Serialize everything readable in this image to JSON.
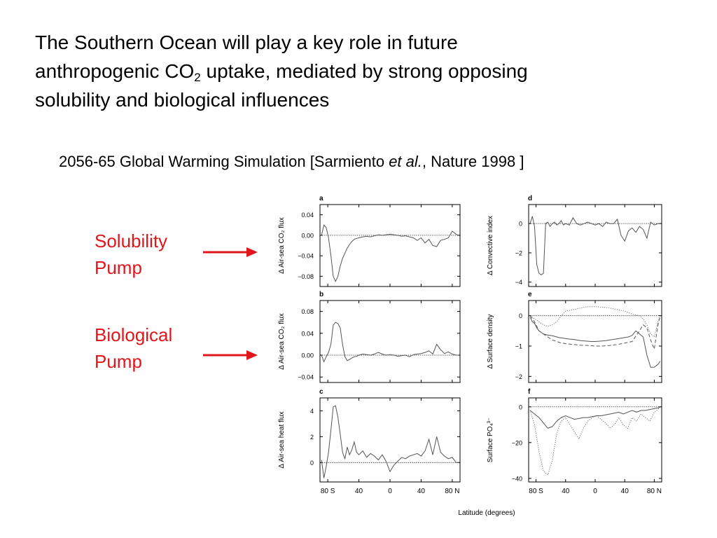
{
  "slide": {
    "title_line1": "The Southern Ocean will play a key role in future",
    "title_line2_pre": "anthropogenic CO",
    "title_line2_sub": "2",
    "title_line2_post": " uptake, mediated by strong opposing",
    "title_line3": "solubility and biological influences",
    "sub_pre": "2056-65 Global Warming Simulation [Sarmiento ",
    "sub_italic": "et al.",
    "sub_post": ", Nature 1998 ]",
    "pump1_line1": "Solubility",
    "pump1_line2": "Pump",
    "pump2_line1": "Biological",
    "pump2_line2": "Pump",
    "accent_color": "#e0161b"
  },
  "chart_data": {
    "type": "line",
    "x_label": "Latitude (degrees)",
    "x_ticks": [
      "80 S",
      "40",
      "0",
      "40",
      "80 N"
    ],
    "x_range": [
      -90,
      90
    ],
    "panels": [
      {
        "id": "a",
        "ylabel": "Δ Air-sea CO₂ flux",
        "ylim": [
          -0.1,
          0.06
        ],
        "yticks": [
          0.04,
          0.0,
          -0.04,
          -0.08
        ],
        "ytick_labels": [
          "0.04",
          "0.00",
          "−0.04",
          "−0.08"
        ],
        "zero_line": 0,
        "series": [
          {
            "style": "solid",
            "x": [
              -88,
              -85,
              -82,
              -79,
              -76,
              -73,
              -70,
              -67,
              -64,
              -61,
              -58,
              -55,
              -52,
              -49,
              -46,
              -43,
              -40,
              -35,
              -30,
              -25,
              -20,
              -15,
              -10,
              -5,
              0,
              5,
              10,
              15,
              20,
              25,
              30,
              35,
              40,
              45,
              50,
              55,
              60,
              65,
              70,
              75,
              80,
              85,
              88
            ],
            "y": [
              0.0,
              0.02,
              0.015,
              -0.005,
              -0.04,
              -0.08,
              -0.09,
              -0.08,
              -0.06,
              -0.045,
              -0.035,
              -0.025,
              -0.018,
              -0.012,
              -0.008,
              -0.006,
              -0.005,
              -0.003,
              -0.002,
              -0.003,
              -0.001,
              0.001,
              0.0,
              0.001,
              0.002,
              0.001,
              0.0,
              -0.002,
              -0.001,
              -0.003,
              -0.005,
              -0.01,
              -0.005,
              -0.015,
              -0.008,
              -0.02,
              -0.022,
              -0.01,
              -0.008,
              -0.005,
              0.008,
              0.002,
              0.0
            ]
          }
        ]
      },
      {
        "id": "b",
        "ylabel": "Δ Air-sea CO₂ flux",
        "ylim": [
          -0.05,
          0.1
        ],
        "yticks": [
          0.08,
          0.04,
          0.0,
          -0.04
        ],
        "ytick_labels": [
          "0.08",
          "0.04",
          "0.00",
          "−0.04"
        ],
        "zero_line": 0,
        "series": [
          {
            "style": "solid",
            "x": [
              -88,
              -85,
              -82,
              -79,
              -76,
              -73,
              -70,
              -67,
              -64,
              -61,
              -58,
              -55,
              -52,
              -49,
              -46,
              -43,
              -40,
              -35,
              -30,
              -25,
              -20,
              -15,
              -10,
              -5,
              0,
              5,
              10,
              15,
              20,
              25,
              30,
              35,
              40,
              45,
              50,
              55,
              60,
              65,
              70,
              75,
              80,
              85,
              88
            ],
            "y": [
              0.0,
              -0.012,
              -0.003,
              0.005,
              0.02,
              0.055,
              0.06,
              0.058,
              0.05,
              0.02,
              -0.003,
              -0.01,
              -0.008,
              -0.005,
              -0.003,
              -0.002,
              0.0,
              0.002,
              0.001,
              0.0,
              0.002,
              0.005,
              0.002,
              0.0,
              0.001,
              0.0,
              -0.002,
              -0.001,
              0.0,
              -0.003,
              0.001,
              0.002,
              0.003,
              0.005,
              0.008,
              0.002,
              0.02,
              0.01,
              0.003,
              0.006,
              0.002,
              0.0,
              0.0
            ]
          }
        ]
      },
      {
        "id": "c",
        "ylabel": "Δ Air-sea heat flux",
        "ylim": [
          -1.5,
          5
        ],
        "yticks": [
          4,
          2,
          0
        ],
        "ytick_labels": [
          "4",
          "2",
          "0"
        ],
        "zero_line": 0,
        "series": [
          {
            "style": "solid",
            "x": [
              -88,
              -85,
              -82,
              -79,
              -76,
              -73,
              -70,
              -67,
              -64,
              -61,
              -58,
              -55,
              -52,
              -49,
              -46,
              -43,
              -40,
              -35,
              -30,
              -25,
              -20,
              -15,
              -10,
              -5,
              0,
              5,
              10,
              15,
              20,
              25,
              30,
              35,
              40,
              45,
              50,
              55,
              60,
              65,
              70,
              75,
              80,
              85,
              88
            ],
            "y": [
              0.2,
              -1.2,
              -0.3,
              0.8,
              2.5,
              4.3,
              4.4,
              3.5,
              2.2,
              0.8,
              0.3,
              1.2,
              0.6,
              1.0,
              1.6,
              0.8,
              0.6,
              0.9,
              0.4,
              0.7,
              0.5,
              0.2,
              0.6,
              0.1,
              -0.7,
              -0.2,
              0.1,
              0.4,
              0.3,
              0.5,
              0.6,
              0.7,
              0.5,
              0.9,
              1.8,
              0.6,
              2.0,
              0.8,
              0.5,
              0.3,
              0.4,
              0.0,
              0.0
            ]
          }
        ]
      },
      {
        "id": "d",
        "ylabel": "Δ Convective index",
        "ylim": [
          -4.3,
          1.3
        ],
        "yticks": [
          0,
          -2,
          -4
        ],
        "ytick_labels": [
          "0",
          "−2",
          "−4"
        ],
        "zero_line": 0,
        "series": [
          {
            "style": "solid",
            "x": [
              -88,
              -85,
              -82,
              -79,
              -76,
              -73,
              -70,
              -67,
              -64,
              -61,
              -58,
              -55,
              -52,
              -49,
              -46,
              -43,
              -40,
              -35,
              -30,
              -25,
              -20,
              -15,
              -10,
              -5,
              0,
              5,
              10,
              15,
              20,
              25,
              30,
              35,
              40,
              45,
              50,
              55,
              60,
              65,
              70,
              75,
              80,
              85,
              88
            ],
            "y": [
              0.0,
              0.5,
              -0.2,
              -2.8,
              -3.4,
              -3.5,
              -3.4,
              0.0,
              0.1,
              -0.2,
              0.0,
              0.1,
              -0.1,
              0.0,
              0.2,
              -0.1,
              0.0,
              -0.1,
              0.4,
              0.0,
              -0.1,
              0.0,
              0.1,
              0.0,
              -0.1,
              0.0,
              -0.2,
              0.1,
              0.0,
              0.0,
              0.3,
              -0.8,
              -1.2,
              -0.5,
              -0.3,
              -0.6,
              -0.2,
              -0.4,
              -1.0,
              0.1,
              -0.1,
              0.0,
              0.0
            ]
          }
        ]
      },
      {
        "id": "e",
        "ylabel": "Δ Surface density",
        "ylim": [
          -2.2,
          0.5
        ],
        "yticks": [
          0,
          -1,
          -2
        ],
        "ytick_labels": [
          "0",
          "−1",
          "−2"
        ],
        "zero_line": 0,
        "series": [
          {
            "style": "solid",
            "x": [
              -88,
              -85,
              -82,
              -79,
              -76,
              -73,
              -70,
              -67,
              -64,
              -61,
              -58,
              -55,
              -52,
              -49,
              -46,
              -43,
              -40,
              -35,
              -30,
              -25,
              -20,
              -15,
              -10,
              -5,
              0,
              5,
              10,
              15,
              20,
              25,
              30,
              35,
              40,
              45,
              50,
              55,
              60,
              65,
              70,
              75,
              80,
              85,
              88
            ],
            "y": [
              -0.05,
              -0.2,
              -0.25,
              -0.4,
              -0.5,
              -0.55,
              -0.6,
              -0.62,
              -0.64,
              -0.65,
              -0.66,
              -0.68,
              -0.7,
              -0.72,
              -0.73,
              -0.74,
              -0.75,
              -0.77,
              -0.78,
              -0.8,
              -0.82,
              -0.83,
              -0.84,
              -0.85,
              -0.85,
              -0.84,
              -0.83,
              -0.82,
              -0.8,
              -0.78,
              -0.76,
              -0.74,
              -0.72,
              -0.7,
              -0.65,
              -0.5,
              -0.6,
              -0.7,
              -1.3,
              -1.7,
              -1.7,
              -1.6,
              -1.5
            ]
          },
          {
            "style": "dashed",
            "x": [
              -88,
              -82,
              -76,
              -70,
              -64,
              -58,
              -52,
              -46,
              -40,
              -30,
              -20,
              -10,
              0,
              10,
              20,
              30,
              40,
              50,
              60,
              65,
              70,
              75,
              80,
              85,
              88
            ],
            "y": [
              0.0,
              -0.2,
              -0.5,
              -0.6,
              -0.7,
              -0.8,
              -0.85,
              -0.9,
              -0.92,
              -0.95,
              -0.97,
              -0.98,
              -1.0,
              -1.0,
              -0.98,
              -0.95,
              -0.9,
              -0.85,
              -0.5,
              -0.3,
              -0.4,
              -0.8,
              -1.1,
              -0.3,
              0.0
            ]
          },
          {
            "style": "dotted",
            "x": [
              -88,
              -82,
              -76,
              -70,
              -64,
              -58,
              -52,
              -46,
              -40,
              -30,
              -20,
              -10,
              0,
              10,
              20,
              30,
              40,
              50,
              60,
              65,
              70,
              75,
              80,
              85,
              88
            ],
            "y": [
              0.0,
              -0.1,
              -0.2,
              -0.3,
              -0.35,
              -0.3,
              -0.2,
              0.0,
              0.15,
              0.2,
              0.25,
              0.3,
              0.3,
              0.28,
              0.25,
              0.2,
              0.15,
              0.05,
              0.0,
              -0.1,
              -0.3,
              -0.6,
              -0.7,
              -0.2,
              0.0
            ]
          }
        ]
      },
      {
        "id": "f",
        "ylabel": "Surface PO₄³⁻",
        "ylim": [
          -42,
          5
        ],
        "yticks": [
          0,
          -20,
          -40
        ],
        "ytick_labels": [
          "0",
          "−20",
          "−40"
        ],
        "zero_line": 0,
        "series": [
          {
            "style": "solid",
            "x": [
              -88,
              -82,
              -76,
              -70,
              -64,
              -58,
              -52,
              -46,
              -40,
              -34,
              -28,
              -22,
              -16,
              -10,
              -4,
              2,
              8,
              14,
              20,
              26,
              32,
              38,
              44,
              50,
              56,
              62,
              68,
              74,
              80,
              86,
              88
            ],
            "y": [
              -2,
              -4,
              -6,
              -9,
              -12,
              -11,
              -8,
              -6,
              -5,
              -6,
              -7,
              -6.5,
              -6,
              -6,
              -5.5,
              -5,
              -5,
              -4.5,
              -4,
              -3.5,
              -3,
              -4,
              -3,
              -2,
              -3,
              -2,
              -2,
              -1.5,
              -1,
              -0.5,
              0
            ]
          },
          {
            "style": "dotted",
            "x": [
              -88,
              -82,
              -76,
              -70,
              -64,
              -58,
              -52,
              -46,
              -40,
              -34,
              -28,
              -22,
              -16,
              -10,
              -4,
              2,
              8,
              14,
              20,
              26,
              32,
              38,
              44,
              50,
              56,
              62,
              68,
              74,
              80,
              86,
              88
            ],
            "y": [
              -2,
              -10,
              -25,
              -36,
              -38,
              -30,
              -15,
              -8,
              -6,
              -10,
              -14,
              -18,
              -12,
              -8,
              -6,
              -5,
              -7,
              -9,
              -12,
              -10,
              -6,
              -10,
              -12,
              -6,
              -8,
              -4,
              -6,
              -8,
              -3,
              -1,
              0
            ]
          }
        ]
      }
    ]
  }
}
